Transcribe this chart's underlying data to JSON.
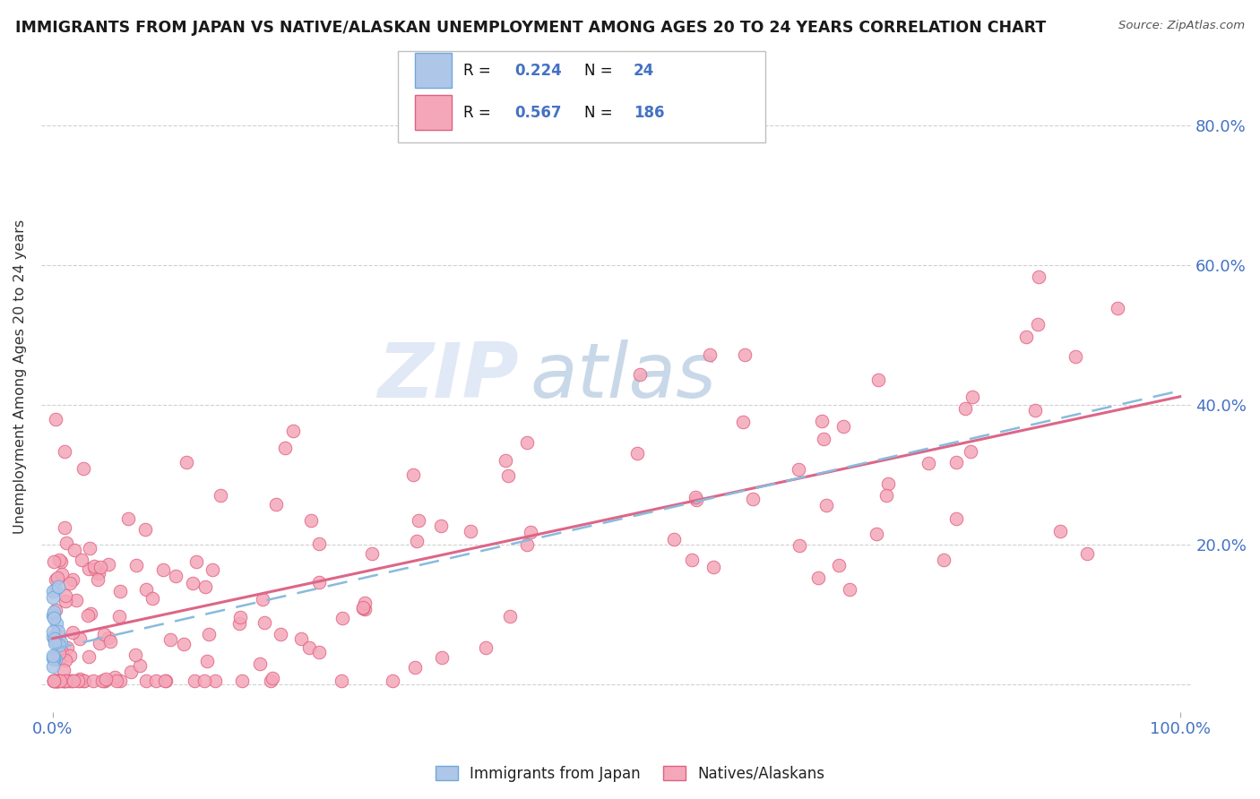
{
  "title": "IMMIGRANTS FROM JAPAN VS NATIVE/ALASKAN UNEMPLOYMENT AMONG AGES 20 TO 24 YEARS CORRELATION CHART",
  "source": "Source: ZipAtlas.com",
  "ylabel": "Unemployment Among Ages 20 to 24 years",
  "blue_R": 0.224,
  "blue_N": 24,
  "pink_R": 0.567,
  "pink_N": 186,
  "blue_color": "#aec6e8",
  "pink_color": "#f4a7b9",
  "blue_edge": "#6fa8dc",
  "pink_edge": "#e06080",
  "trend_blue_color": "#88bbdd",
  "trend_pink_color": "#dd6688",
  "background_color": "#ffffff",
  "grid_color": "#cccccc",
  "watermark": "ZIPatlas",
  "watermark_color_zip": "#c8d8ee",
  "watermark_color_atlas": "#88aacc",
  "legend_label_blue": "Immigrants from Japan",
  "legend_label_pink": "Natives/Alaskans",
  "tick_color": "#4472c4",
  "title_color": "#1a1a1a",
  "source_color": "#555555",
  "ylabel_color": "#333333"
}
